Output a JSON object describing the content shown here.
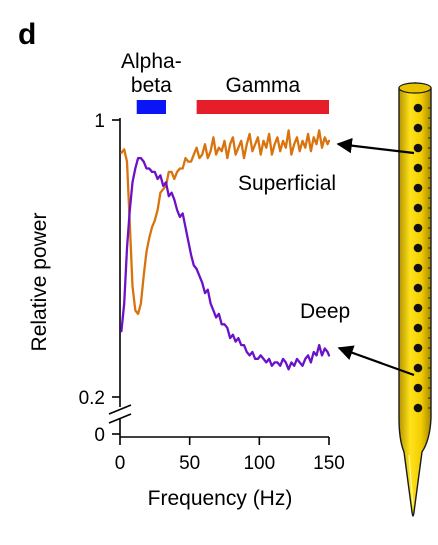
{
  "panel_label": "d",
  "icons": {
    "probe": "linear-electrode-probe-icon"
  },
  "chart_data": {
    "type": "line",
    "xlabel": "Frequency (Hz)",
    "ylabel": "Relative power",
    "xlim": [
      0,
      150
    ],
    "ylim": [
      0.2,
      1.0
    ],
    "y_axis_break": true,
    "x_ticks": [
      0,
      50,
      100,
      150
    ],
    "x_tick_labels": [
      "0",
      "50",
      "100",
      "150"
    ],
    "y_ticks": [
      {
        "value": 1.0,
        "label": "1"
      },
      {
        "value": 0.2,
        "label": "0.2"
      },
      {
        "value": 0.0,
        "label": "0",
        "below_break": true
      }
    ],
    "bands": [
      {
        "label": "Alpha-\nbeta",
        "label_lines": [
          "Alpha-",
          "beta"
        ],
        "range": [
          12,
          33
        ],
        "color": "#0a14f5"
      },
      {
        "label": "Gamma",
        "label_lines": [
          "Gamma"
        ],
        "range": [
          55,
          150
        ],
        "color": "#e51e2a"
      }
    ],
    "series": [
      {
        "name": "Superficial",
        "color": "#d9730d",
        "x": [
          1,
          3,
          5,
          7,
          9,
          11,
          13,
          15,
          17,
          19,
          21,
          23,
          25,
          27,
          29,
          31,
          33,
          35,
          37,
          39,
          41,
          43,
          45,
          47,
          49,
          51,
          53,
          55,
          57,
          59,
          61,
          63,
          65,
          67,
          69,
          71,
          73,
          75,
          77,
          79,
          81,
          83,
          85,
          87,
          89,
          91,
          93,
          95,
          97,
          99,
          101,
          103,
          105,
          107,
          109,
          111,
          113,
          115,
          117,
          119,
          121,
          123,
          125,
          127,
          129,
          131,
          133,
          135,
          137,
          139,
          141,
          143,
          145,
          147,
          149,
          150
        ],
        "y": [
          0.905,
          0.915,
          0.88,
          0.7,
          0.52,
          0.45,
          0.44,
          0.47,
          0.55,
          0.62,
          0.66,
          0.69,
          0.71,
          0.74,
          0.79,
          0.8,
          0.81,
          0.85,
          0.85,
          0.83,
          0.85,
          0.86,
          0.86,
          0.89,
          0.88,
          0.88,
          0.9,
          0.92,
          0.89,
          0.9,
          0.93,
          0.89,
          0.91,
          0.95,
          0.9,
          0.92,
          0.91,
          0.94,
          0.89,
          0.93,
          0.95,
          0.9,
          0.92,
          0.94,
          0.89,
          0.93,
          0.96,
          0.91,
          0.93,
          0.95,
          0.9,
          0.94,
          0.92,
          0.96,
          0.9,
          0.93,
          0.95,
          0.91,
          0.94,
          0.92,
          0.97,
          0.9,
          0.93,
          0.95,
          0.91,
          0.94,
          0.92,
          0.96,
          0.91,
          0.95,
          0.93,
          0.97,
          0.92,
          0.95,
          0.93,
          0.94
        ]
      },
      {
        "name": "Deep",
        "color": "#6b12c9",
        "x": [
          1,
          3,
          5,
          7,
          9,
          11,
          13,
          15,
          17,
          19,
          21,
          23,
          25,
          27,
          29,
          31,
          33,
          35,
          37,
          39,
          41,
          43,
          45,
          47,
          49,
          51,
          53,
          55,
          57,
          59,
          61,
          63,
          65,
          67,
          69,
          71,
          73,
          75,
          77,
          79,
          81,
          83,
          85,
          87,
          89,
          91,
          93,
          95,
          97,
          99,
          101,
          103,
          105,
          107,
          109,
          111,
          113,
          115,
          117,
          119,
          121,
          123,
          125,
          127,
          129,
          131,
          133,
          135,
          137,
          139,
          141,
          143,
          145,
          147,
          149,
          150
        ],
        "y": [
          0.39,
          0.47,
          0.63,
          0.74,
          0.82,
          0.86,
          0.89,
          0.89,
          0.88,
          0.86,
          0.86,
          0.85,
          0.85,
          0.83,
          0.84,
          0.81,
          0.82,
          0.78,
          0.79,
          0.77,
          0.74,
          0.72,
          0.73,
          0.69,
          0.65,
          0.61,
          0.58,
          0.57,
          0.55,
          0.53,
          0.5,
          0.51,
          0.47,
          0.45,
          0.43,
          0.44,
          0.41,
          0.41,
          0.4,
          0.37,
          0.38,
          0.36,
          0.37,
          0.35,
          0.35,
          0.33,
          0.32,
          0.33,
          0.31,
          0.31,
          0.32,
          0.31,
          0.3,
          0.31,
          0.29,
          0.3,
          0.3,
          0.29,
          0.31,
          0.3,
          0.28,
          0.3,
          0.29,
          0.31,
          0.3,
          0.29,
          0.31,
          0.32,
          0.3,
          0.33,
          0.32,
          0.35,
          0.32,
          0.34,
          0.33,
          0.32
        ]
      }
    ]
  }
}
